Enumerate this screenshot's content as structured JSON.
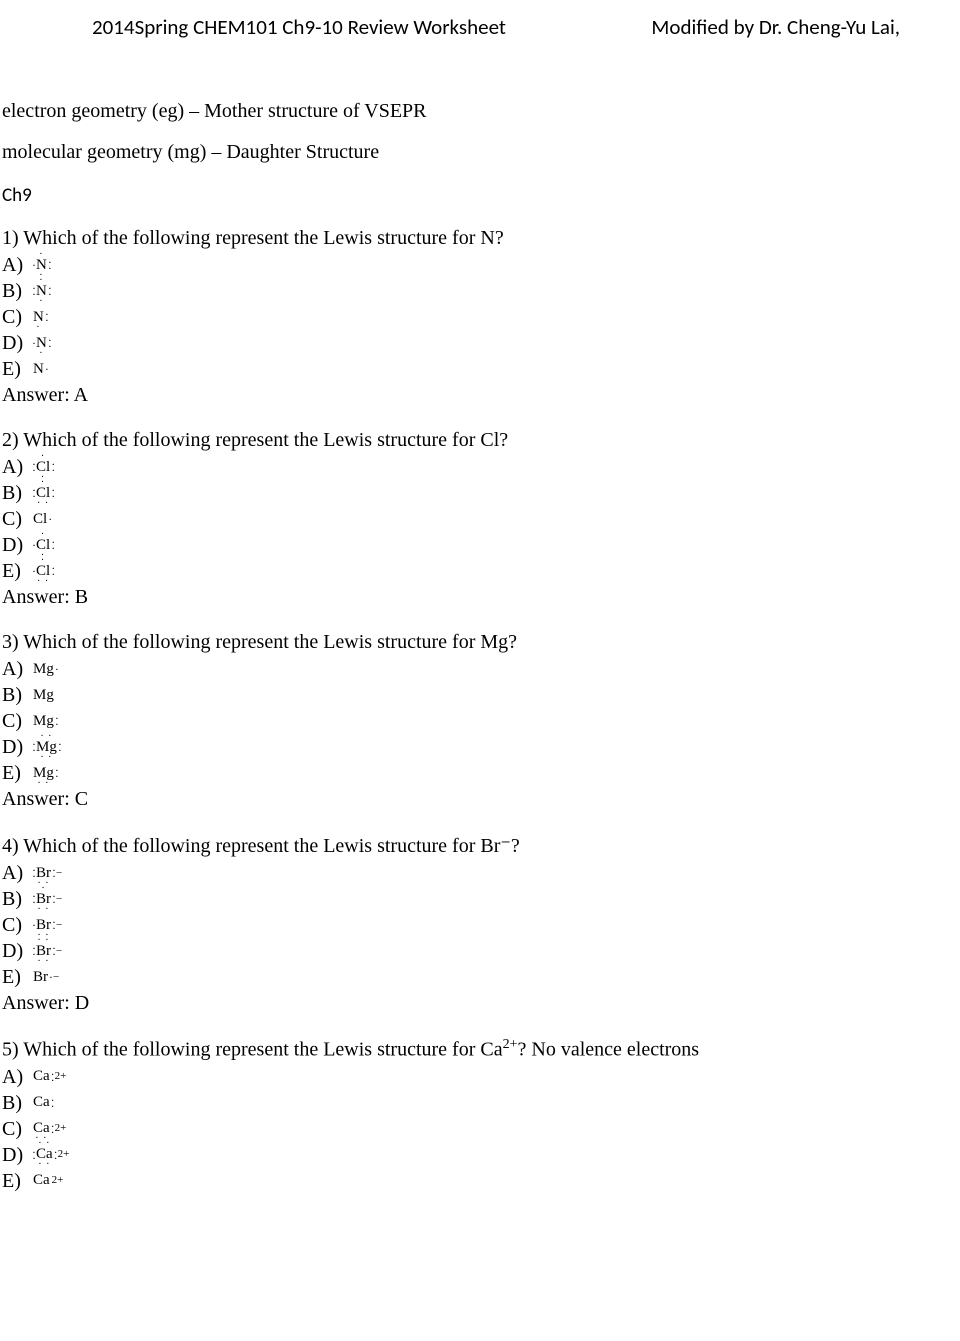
{
  "header": {
    "left": "2014Spring CHEM101 Ch9-10 Review Worksheet",
    "right": "Modified by Dr. Cheng-Yu Lai,"
  },
  "intro": {
    "line1": "electron geometry (eg) – Mother structure of VSEPR",
    "line2": "molecular geometry (mg) – Daughter Structure"
  },
  "chapter_label": "Ch9",
  "questions": [
    {
      "num": "1)",
      "text": "Which of the following represent the Lewis structure for N?",
      "options": [
        {
          "label": "A)",
          "sym": "N",
          "left": "·",
          "right": ":",
          "top": "·",
          "bot": "·",
          "charge": ""
        },
        {
          "label": "B)",
          "sym": "N",
          "left": ":",
          "right": ":",
          "top": "·",
          "bot": "·",
          "charge": ""
        },
        {
          "label": "C)",
          "sym": "N",
          "left": "",
          "right": ":",
          "top": "",
          "bot": "·",
          "charge": ""
        },
        {
          "label": "D)",
          "sym": "N",
          "left": "·",
          "right": ":",
          "top": "",
          "bot": "·",
          "charge": ""
        },
        {
          "label": "E)",
          "sym": "N",
          "left": "",
          "right": "·",
          "top": "",
          "bot": "",
          "charge": ""
        }
      ],
      "answer": "Answer:  A"
    },
    {
      "num": "2)",
      "text": "Which of the following represent the Lewis structure for Cl?",
      "options": [
        {
          "label": "A)",
          "sym": "Cl",
          "left": ":",
          "right": ":",
          "top": "·",
          "bot": "·",
          "charge": ""
        },
        {
          "label": "B)",
          "sym": "Cl",
          "left": ":",
          "right": ":",
          "top": "·",
          "bot": "··",
          "charge": ""
        },
        {
          "label": "C)",
          "sym": "Cl",
          "left": "",
          "right": "·",
          "top": "",
          "bot": "",
          "charge": ""
        },
        {
          "label": "D)",
          "sym": "Cl",
          "left": "·",
          "right": ":",
          "top": "·",
          "bot": "·",
          "charge": ""
        },
        {
          "label": "E)",
          "sym": "Cl",
          "left": "·",
          "right": ":",
          "top": "·",
          "bot": "··",
          "charge": ""
        }
      ],
      "answer": "Answer:  B"
    },
    {
      "num": "3)",
      "text": "Which of the following represent the Lewis structure for Mg?",
      "options": [
        {
          "label": "A)",
          "sym": "Mg",
          "left": "",
          "right": "·",
          "top": "",
          "bot": "",
          "charge": ""
        },
        {
          "label": "B)",
          "sym": "Mg",
          "left": "",
          "right": "",
          "top": "",
          "bot": "",
          "charge": ""
        },
        {
          "label": "C)",
          "sym": "Mg",
          "left": "",
          "right": ":",
          "top": "",
          "bot": "",
          "charge": ""
        },
        {
          "label": "D)",
          "sym": "Mg",
          "left": ":",
          "right": ":",
          "top": "··",
          "bot": "··",
          "charge": ""
        },
        {
          "label": "E)",
          "sym": "Mg",
          "left": "",
          "right": ":",
          "top": "",
          "bot": "··",
          "charge": ""
        }
      ],
      "answer": "Answer:  C"
    },
    {
      "num": "4)",
      "text": "Which of the following represent the Lewis structure for Br⁻?",
      "options": [
        {
          "label": "A)",
          "sym": "Br",
          "left": ":",
          "right": ":",
          "top": "",
          "bot": "··",
          "charge": "−"
        },
        {
          "label": "B)",
          "sym": "Br",
          "left": ":",
          "right": ":",
          "top": "·",
          "bot": "··",
          "charge": "−"
        },
        {
          "label": "C)",
          "sym": "Br",
          "left": "·",
          "right": ":",
          "top": "",
          "bot": "··",
          "charge": "−"
        },
        {
          "label": "D)",
          "sym": "Br",
          "left": ":",
          "right": ":",
          "top": "··",
          "bot": "··",
          "charge": "−"
        },
        {
          "label": "E)",
          "sym": "Br",
          "left": "",
          "right": "·",
          "top": "",
          "bot": "",
          "charge": "−"
        }
      ],
      "answer": "Answer:  D"
    },
    {
      "num": "5)",
      "text_html": "Which of the following represent the Lewis structure for Ca<sup>2+</sup>? No valence electrons",
      "options": [
        {
          "label": "A)",
          "sym": "Ca",
          "left": "",
          "right": ":",
          "top": "",
          "bot": "",
          "charge": "2+"
        },
        {
          "label": "B)",
          "sym": "Ca",
          "left": "",
          "right": ":",
          "top": "",
          "bot": "",
          "charge": ""
        },
        {
          "label": "C)",
          "sym": "Ca",
          "left": "",
          "right": ":",
          "top": "",
          "bot": "··",
          "charge": "2+"
        },
        {
          "label": "D)",
          "sym": "Ca",
          "left": ":",
          "right": ":",
          "top": "··",
          "bot": "··",
          "charge": "2+"
        },
        {
          "label": "E)",
          "sym": "Ca",
          "left": "",
          "right": "",
          "top": "",
          "bot": "",
          "charge": " 2+"
        }
      ],
      "answer": ""
    }
  ]
}
